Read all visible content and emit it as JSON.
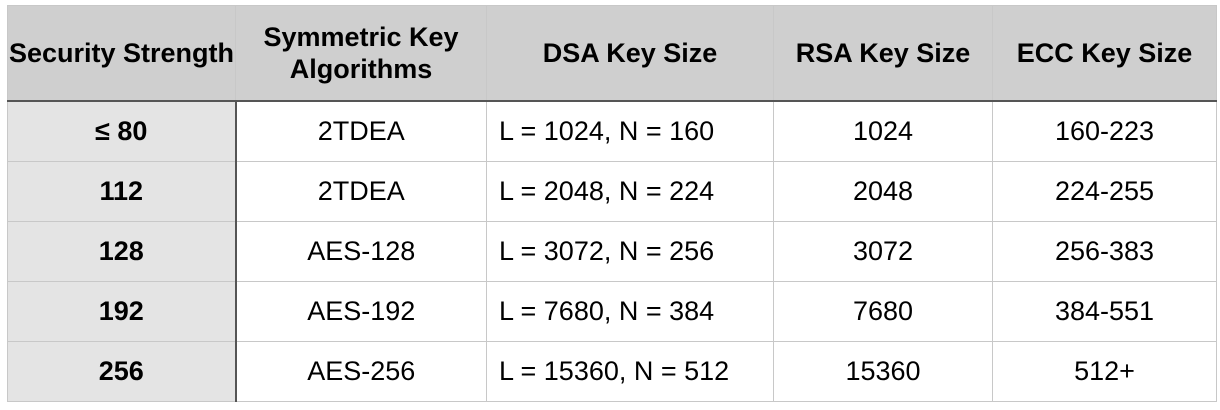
{
  "table": {
    "headers": [
      "Security Strength",
      "Symmetric Key Algorithms",
      "DSA Key Size",
      "RSA Key Size",
      "ECC Key Size"
    ],
    "rows": [
      [
        "≤ 80",
        "2TDEA",
        "L = 1024, N = 160",
        "1024",
        "160-223"
      ],
      [
        "112",
        "2TDEA",
        "L = 2048, N = 224",
        "2048",
        "224-255"
      ],
      [
        "128",
        "AES-128",
        "L = 3072, N = 256",
        "3072",
        "256-383"
      ],
      [
        "192",
        "AES-192",
        "L = 7680, N = 384",
        "7680",
        "384-551"
      ],
      [
        "256",
        "AES-256",
        "L = 15360, N = 512",
        "15360",
        "512+"
      ]
    ]
  }
}
